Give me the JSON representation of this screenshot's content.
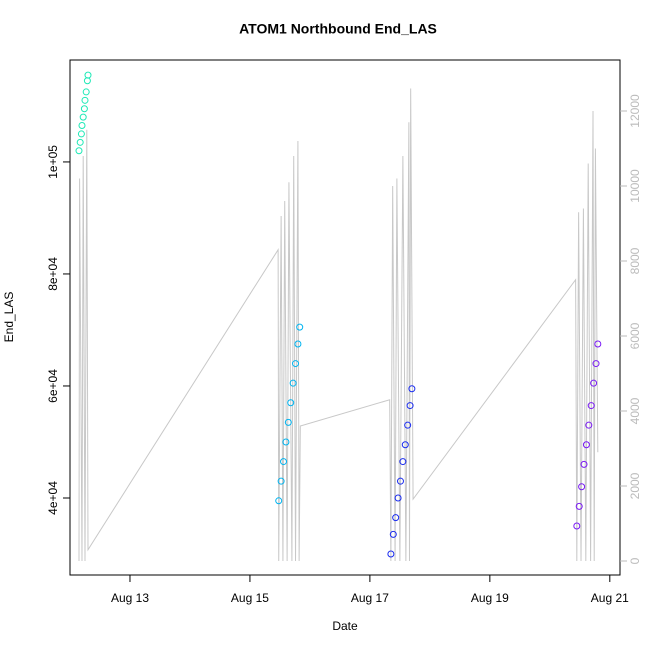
{
  "chart_data": {
    "type": "scatter",
    "title": "ATOM1 Northbound End_LAS",
    "x_label": "Date",
    "y_label": "End_LAS",
    "xlim": [
      12,
      21.17
    ],
    "xticks": [
      {
        "value": 13,
        "label": "Aug 13"
      },
      {
        "value": 15,
        "label": "Aug 15"
      },
      {
        "value": 17,
        "label": "Aug 17"
      },
      {
        "value": 19,
        "label": "Aug 19"
      },
      {
        "value": 21,
        "label": "Aug 21"
      }
    ],
    "ylim": [
      26250,
      118200
    ],
    "yticks": [
      {
        "value": 40000,
        "label": "4e+04"
      },
      {
        "value": 60000,
        "label": "6e+04"
      },
      {
        "value": 80000,
        "label": "8e+04"
      },
      {
        "value": 100000,
        "label": "1e+05"
      }
    ],
    "y2lim": [
      -373,
      13360
    ],
    "y2ticks": [
      0,
      2000,
      4000,
      6000,
      8000,
      10000,
      12000
    ],
    "series": [
      {
        "type": "line",
        "axis": "y2",
        "color": "#c8c8c8",
        "x": [
          12.15,
          12.16,
          12.2,
          12.22,
          12.25,
          12.28,
          12.3,
          15.47,
          15.48,
          15.52,
          15.55,
          15.58,
          15.62,
          15.65,
          15.7,
          15.73,
          15.76,
          15.8,
          15.82,
          15.84,
          17.33,
          17.35,
          17.38,
          17.42,
          17.45,
          17.5,
          17.55,
          17.6,
          17.65,
          17.66,
          17.68,
          17.72,
          20.43,
          20.45,
          20.48,
          20.52,
          20.56,
          20.6,
          20.64,
          20.68,
          20.72,
          20.74,
          20.76,
          20.8
        ],
        "values": [
          0,
          10200,
          0,
          10800,
          0,
          11500,
          300,
          8300,
          0,
          9200,
          0,
          9600,
          0,
          10100,
          0,
          10800,
          0,
          11200,
          0,
          3600,
          4300,
          0,
          10000,
          0,
          10200,
          0,
          10800,
          0,
          11700,
          0,
          12600,
          1650,
          7500,
          0,
          9300,
          0,
          9400,
          0,
          10600,
          0,
          12000,
          0,
          11000,
          2900
        ]
      },
      {
        "color": "#1de9b6",
        "x": [
          12.15,
          12.17,
          12.19,
          12.2,
          12.22,
          12.24,
          12.25,
          12.27,
          12.29,
          12.3
        ],
        "values": [
          102000,
          103500,
          105000,
          106500,
          108000,
          109500,
          111000,
          112500,
          114500,
          115500
        ]
      },
      {
        "color": "#00b4f0",
        "x": [
          15.48,
          15.52,
          15.56,
          15.6,
          15.64,
          15.68,
          15.72,
          15.76,
          15.8,
          15.83
        ],
        "values": [
          39500,
          43000,
          46500,
          50000,
          53500,
          57000,
          60500,
          64000,
          67500,
          70500
        ]
      },
      {
        "color": "#1a2cf0",
        "x": [
          17.35,
          17.39,
          17.43,
          17.47,
          17.51,
          17.55,
          17.59,
          17.63,
          17.67,
          17.7
        ],
        "values": [
          30000,
          33500,
          36500,
          40000,
          43000,
          46500,
          49500,
          53000,
          56500,
          59500
        ]
      },
      {
        "color": "#7a1af5",
        "x": [
          20.45,
          20.49,
          20.53,
          20.57,
          20.61,
          20.65,
          20.69,
          20.73,
          20.77,
          20.8
        ],
        "values": [
          35000,
          38500,
          42000,
          46000,
          49500,
          53000,
          56500,
          60500,
          64000,
          67500
        ]
      }
    ]
  }
}
